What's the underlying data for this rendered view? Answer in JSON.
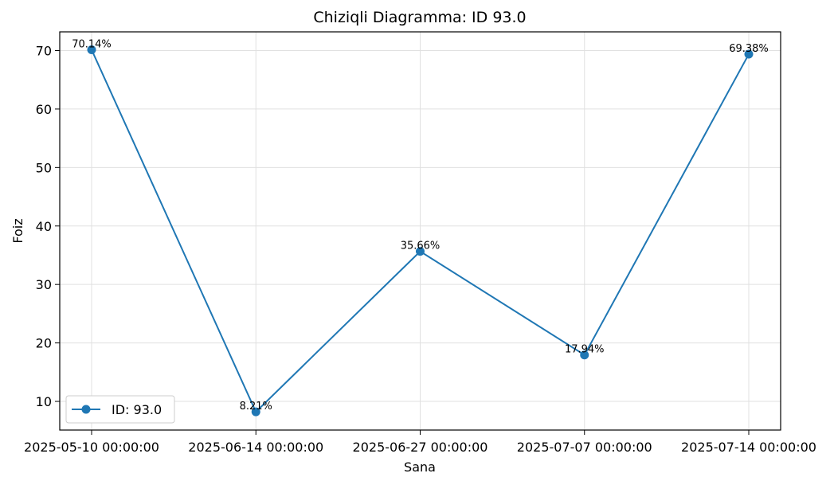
{
  "chart_data": {
    "type": "line",
    "title": "Chiziqli Diagramma: ID 93.0",
    "xlabel": "Sana",
    "ylabel": "Foiz",
    "categories": [
      "2025-05-10 00:00:00",
      "2025-06-14 00:00:00",
      "2025-06-27 00:00:00",
      "2025-07-07 00:00:00",
      "2025-07-14 00:00:00"
    ],
    "series": [
      {
        "name": "ID: 93.0",
        "values": [
          70.14,
          8.21,
          35.66,
          17.94,
          69.38
        ],
        "labels": [
          "70.14%",
          "8.21%",
          "35.66%",
          "17.94%",
          "69.38%"
        ],
        "color": "#1f77b4"
      }
    ],
    "yticks": [
      10,
      20,
      30,
      40,
      50,
      60,
      70
    ],
    "ylim": [
      5.1,
      73.2
    ],
    "grid": true,
    "legend_position": "lower-left"
  }
}
